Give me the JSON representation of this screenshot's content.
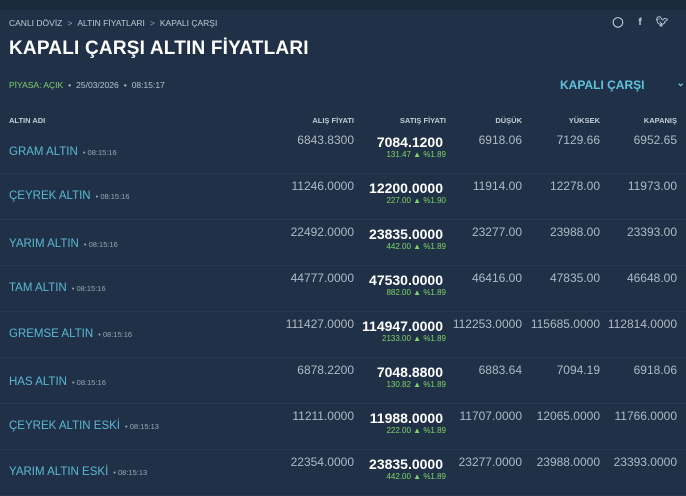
{
  "breadcrumb": [
    "CANLI DÖVİZ",
    "ALTIN FİYATLARI",
    "KAPALI ÇARŞI"
  ],
  "share_icons": [
    "whatsapp-icon",
    "facebook-icon",
    "twitter-icon"
  ],
  "title": "KAPALI ÇARŞI ALTIN FİYATLARI",
  "status": {
    "market": "PİYASA: AÇIK",
    "date": "25/03/2026",
    "time": "08:15:17"
  },
  "market_select": "KAPALI ÇARŞI",
  "colors": {
    "background": "#203147",
    "accent": "#5ec3de",
    "up": "#7fd36a"
  },
  "headers": {
    "name": "ALTIN ADI",
    "buy": "ALIŞ FİYATI",
    "sell": "SATIŞ FİYATI",
    "low": "DÜŞÜK",
    "high": "YÜKSEK",
    "close": "KAPANIŞ"
  },
  "rows": [
    {
      "name": "GRAM ALTIN",
      "time": "08:15:16",
      "buy": "6843.8300",
      "sell": "7084.1200",
      "change": "131.47 ▲ %1.89",
      "low": "6918.06",
      "high": "7129.66",
      "close": "6952.65"
    },
    {
      "name": "ÇEYREK ALTIN",
      "time": "08:15:16",
      "buy": "11246.0000",
      "sell": "12200.0000",
      "change": "227.00 ▲ %1.90",
      "low": "11914.00",
      "high": "12278.00",
      "close": "11973.00"
    },
    {
      "name": "YARIM ALTIN",
      "time": "08:15:16",
      "buy": "22492.0000",
      "sell": "23835.0000",
      "change": "442.00 ▲ %1.89",
      "low": "23277.00",
      "high": "23988.00",
      "close": "23393.00"
    },
    {
      "name": "TAM ALTIN",
      "time": "08:15:16",
      "buy": "44777.0000",
      "sell": "47530.0000",
      "change": "882.00 ▲ %1.89",
      "low": "46416.00",
      "high": "47835.00",
      "close": "46648.00"
    },
    {
      "name": "GREMSE ALTIN",
      "time": "08:15:16",
      "buy": "111427.0000",
      "sell": "114947.0000",
      "change": "2133.00 ▲ %1.89",
      "low": "112253.0000",
      "high": "115685.0000",
      "close": "112814.0000"
    },
    {
      "name": "HAS ALTIN",
      "time": "08:15:16",
      "buy": "6878.2200",
      "sell": "7048.8800",
      "change": "130.82 ▲ %1.89",
      "low": "6883.64",
      "high": "7094.19",
      "close": "6918.06"
    },
    {
      "name": "ÇEYREK ALTIN ESKİ",
      "time": "08:15:13",
      "buy": "11211.0000",
      "sell": "11988.0000",
      "change": "222.00 ▲ %1.89",
      "low": "11707.0000",
      "high": "12065.0000",
      "close": "11766.0000"
    },
    {
      "name": "YARIM ALTIN ESKİ",
      "time": "08:15:13",
      "buy": "22354.0000",
      "sell": "23835.0000",
      "change": "442.00 ▲ %1.89",
      "low": "23277.0000",
      "high": "23988.0000",
      "close": "23393.0000"
    }
  ]
}
